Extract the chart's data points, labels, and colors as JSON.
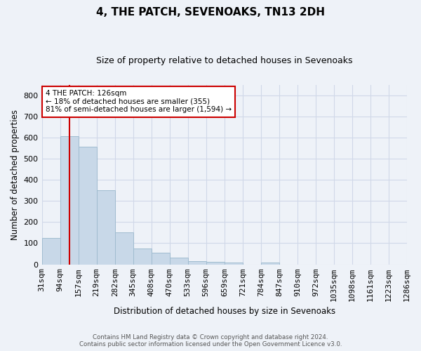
{
  "title": "4, THE PATCH, SEVENOAKS, TN13 2DH",
  "subtitle": "Size of property relative to detached houses in Sevenoaks",
  "xlabel": "Distribution of detached houses by size in Sevenoaks",
  "ylabel": "Number of detached properties",
  "bar_values": [
    125,
    605,
    555,
    350,
    150,
    75,
    55,
    33,
    15,
    13,
    7,
    0,
    8,
    0,
    0,
    0,
    0,
    0,
    0,
    0
  ],
  "categories": [
    "31sqm",
    "94sqm",
    "157sqm",
    "219sqm",
    "282sqm",
    "345sqm",
    "408sqm",
    "470sqm",
    "533sqm",
    "596sqm",
    "659sqm",
    "721sqm",
    "784sqm",
    "847sqm",
    "910sqm",
    "972sqm",
    "1035sqm",
    "1098sqm",
    "1161sqm",
    "1223sqm",
    "1286sqm"
  ],
  "bar_color": "#c8d8e8",
  "bar_edge_color": "#a0bcd0",
  "grid_color": "#d0d8e8",
  "background_color": "#eef2f8",
  "vline_color": "#cc0000",
  "vline_x": 1.5,
  "annotation_text": "4 THE PATCH: 126sqm\n← 18% of detached houses are smaller (355)\n81% of semi-detached houses are larger (1,594) →",
  "annotation_box_color": "#ffffff",
  "annotation_box_edge_color": "#cc0000",
  "ylim": [
    0,
    850
  ],
  "yticks": [
    0,
    100,
    200,
    300,
    400,
    500,
    600,
    700,
    800
  ],
  "footer_line1": "Contains HM Land Registry data © Crown copyright and database right 2024.",
  "footer_line2": "Contains public sector information licensed under the Open Government Licence v3.0."
}
